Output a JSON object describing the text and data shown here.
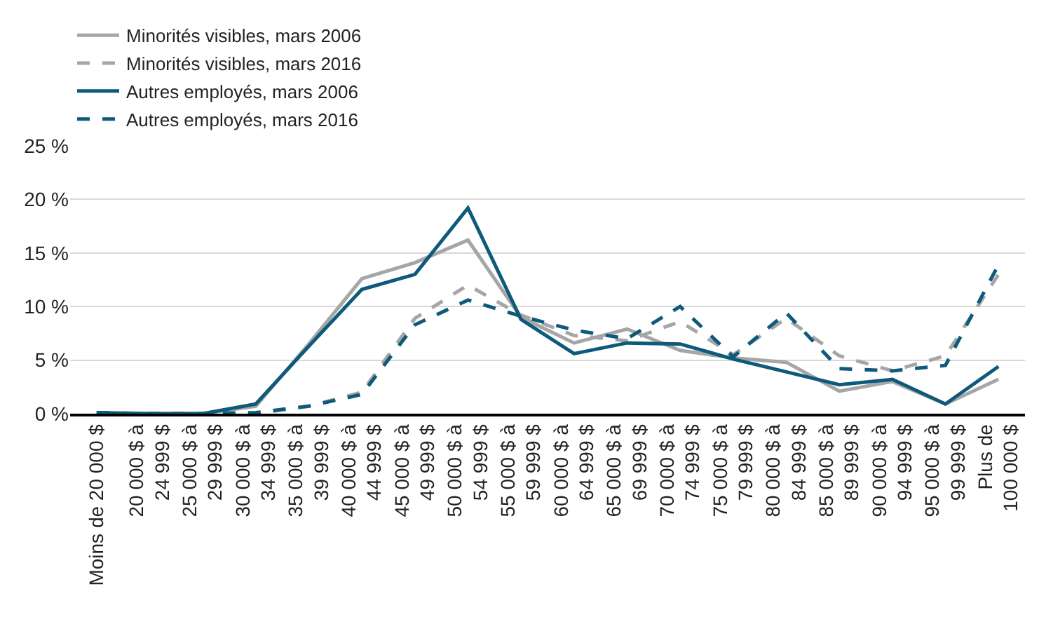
{
  "chart_data": {
    "type": "line",
    "categories": [
      "Moins de 20 000 $",
      "20 000 $ à\n24 999 $",
      "25 000 $ à\n29 999 $",
      "30 000 $ à\n34 999 $",
      "35 000 $ à\n39 999 $",
      "40 000 $ à\n44 999 $",
      "45 000 $ à\n49 999 $",
      "50 000 $ à\n54 999 $",
      "55 000 $ à\n59 999 $",
      "60 000 $ à\n64 999 $",
      "65 000 $ à\n69 999 $",
      "70 000 $ à\n74 999 $",
      "75 000 $ à\n79 999 $",
      "80 000 $ à\n84 999 $",
      "85 000 $ à\n89 999 $",
      "90 000 $ à\n94 999 $",
      "95 000 $ à\n99 999 $",
      "Plus de\n100 000 $"
    ],
    "series": [
      {
        "name": "Minorités visibles, mars 2006",
        "color": "#a6a6a6",
        "line_style": "solid",
        "values": [
          0,
          0,
          0,
          0.7,
          6.5,
          12.6,
          14.1,
          16.2,
          9.0,
          6.6,
          7.9,
          5.9,
          5.2,
          4.8,
          2.1,
          3.0,
          0.9,
          3.2
        ]
      },
      {
        "name": "Minorités visibles, mars 2016",
        "color": "#a6a6a6",
        "line_style": "dashed",
        "values": [
          0,
          0,
          0,
          0,
          0.7,
          2.0,
          8.9,
          12.0,
          9.2,
          7.3,
          6.8,
          8.6,
          5.5,
          8.9,
          5.4,
          4.0,
          5.4,
          13.0
        ]
      },
      {
        "name": "Autres employés, mars 2006",
        "color": "#0e5a7a",
        "line_style": "solid",
        "values": [
          0.1,
          0,
          0,
          0.9,
          6.3,
          11.6,
          13.0,
          19.2,
          8.8,
          5.6,
          6.6,
          6.5,
          5.1,
          3.9,
          2.7,
          3.2,
          0.9,
          4.4
        ]
      },
      {
        "name": "Autres employés, mars 2016",
        "color": "#0e5a7a",
        "line_style": "dashed",
        "values": [
          0.1,
          0,
          0,
          0.1,
          0.7,
          1.8,
          8.3,
          10.6,
          9.1,
          7.8,
          7.0,
          10.0,
          5.3,
          9.4,
          4.2,
          4.0,
          4.5,
          13.9
        ]
      }
    ],
    "ylim": [
      0,
      25
    ],
    "yticks": [
      {
        "value": 0,
        "label": "0 %"
      },
      {
        "value": 5,
        "label": "5 %"
      },
      {
        "value": 10,
        "label": "10 %"
      },
      {
        "value": 15,
        "label": "15 %"
      },
      {
        "value": 20,
        "label": "20 %"
      },
      {
        "value": 25,
        "label": "25 %"
      }
    ],
    "grid": "y",
    "legend": "top left",
    "marker": "none"
  }
}
